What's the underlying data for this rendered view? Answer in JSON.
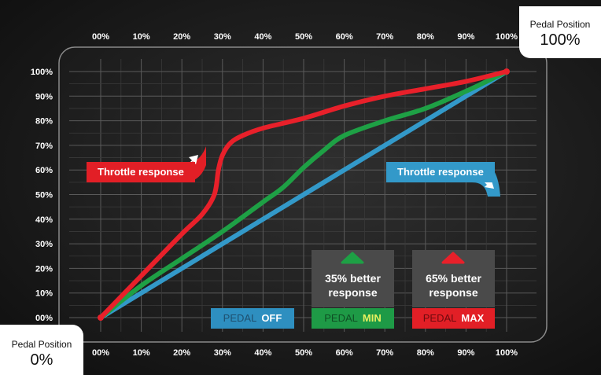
{
  "chart_data": {
    "type": "line",
    "x_ticks_top": [
      "00%",
      "10%",
      "20%",
      "30%",
      "40%",
      "50%",
      "60%",
      "70%",
      "80%",
      "90%",
      "100%"
    ],
    "x_ticks_bottom": [
      "00%",
      "10%",
      "20%",
      "30%",
      "40%",
      "50%",
      "60%",
      "70%",
      "80%",
      "90%",
      "100%"
    ],
    "y_ticks": [
      "00%",
      "10%",
      "20%",
      "30%",
      "40%",
      "50%",
      "60%",
      "70%",
      "80%",
      "90%",
      "100%"
    ],
    "xlim": [
      0,
      100
    ],
    "ylim": [
      0,
      100
    ],
    "grid": true,
    "series": [
      {
        "name": "PEDAL OFF",
        "color": "#3399c9",
        "x": [
          0,
          100
        ],
        "y": [
          0,
          100
        ]
      },
      {
        "name": "PEDAL MIN",
        "color": "#1ea045",
        "x": [
          0,
          10,
          20,
          30,
          40,
          45,
          50,
          55,
          60,
          70,
          80,
          90,
          100
        ],
        "y": [
          0,
          13,
          24,
          35,
          47,
          53,
          61,
          68,
          74,
          80,
          85,
          92,
          100
        ]
      },
      {
        "name": "PEDAL MAX",
        "color": "#e8202a",
        "x": [
          0,
          10,
          20,
          25,
          28,
          29,
          30,
          32,
          35,
          40,
          50,
          60,
          70,
          80,
          90,
          100
        ],
        "y": [
          0,
          17,
          34,
          42,
          50,
          60,
          66,
          71,
          74,
          77,
          81,
          86,
          90,
          93,
          96,
          100
        ]
      }
    ]
  },
  "callouts": {
    "end": {
      "label": "Pedal Position",
      "value": "100%"
    },
    "start": {
      "label": "Pedal Position",
      "value": "0%"
    }
  },
  "annotations": {
    "red_flag": "Throttle response",
    "blue_flag": "Throttle response",
    "min_box": {
      "line1": "35% better",
      "line2": "response"
    },
    "max_box": {
      "line1": "65% better",
      "line2": "response"
    }
  },
  "legend": {
    "off": {
      "prefix": "PEDAL",
      "mode": "OFF",
      "bg": "#2e8fc0"
    },
    "min": {
      "prefix": "PEDAL",
      "mode": "MIN",
      "bg": "#1e9a46"
    },
    "max": {
      "prefix": "PEDAL",
      "mode": "MAX",
      "bg": "#e21f26"
    }
  }
}
